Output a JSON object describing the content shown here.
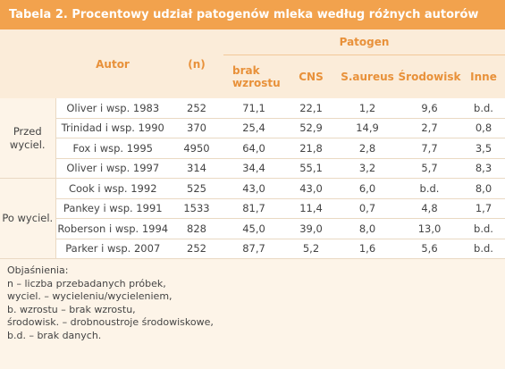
{
  "title": "Tabela 2. Procentowy udział patogenów mleka według różnych autorów",
  "header": {
    "author": "Autor",
    "n": "(n)",
    "group": "Patogen",
    "columns": [
      "brak wzrostu",
      "CNS",
      "S.aureus",
      "Środowisk",
      "Inne"
    ]
  },
  "groups": [
    {
      "label": "Przed wyciel.",
      "rows": [
        [
          "Oliver i wsp. 1983",
          "252",
          "71,1",
          "22,1",
          "1,2",
          "9,6",
          "b.d."
        ],
        [
          "Trinidad i wsp. 1990",
          "370",
          "25,4",
          "52,9",
          "14,9",
          "2,7",
          "0,8"
        ],
        [
          "Fox i wsp. 1995",
          "4950",
          "64,0",
          "21,8",
          "2,8",
          "7,7",
          "3,5"
        ],
        [
          "Oliver i wsp. 1997",
          "314",
          "34,4",
          "55,1",
          "3,2",
          "5,7",
          "8,3"
        ]
      ]
    },
    {
      "label": "Po wyciel.",
      "rows": [
        [
          "Cook i wsp. 1992",
          "525",
          "43,0",
          "43,0",
          "6,0",
          "b.d.",
          "8,0"
        ],
        [
          "Pankey i wsp. 1991",
          "1533",
          "81,7",
          "11,4",
          "0,7",
          "4,8",
          "1,7"
        ],
        [
          "Roberson i wsp. 1994",
          "828",
          "45,0",
          "39,0",
          "8,0",
          "13,0",
          "b.d."
        ],
        [
          "Parker i wsp. 2007",
          "252",
          "87,7",
          "5,2",
          "1,6",
          "5,6",
          "b.d."
        ]
      ]
    }
  ],
  "notes": {
    "heading": "Objaśnienia:",
    "lines": [
      "n – liczba przebadanych próbek,",
      "wyciel. –  wycieleniu/wycieleniem,",
      "b. wzrostu – brak wzrostu,",
      "środowisk. – drobnoustroje środowiskowe,",
      "b.d. – brak danych."
    ]
  }
}
